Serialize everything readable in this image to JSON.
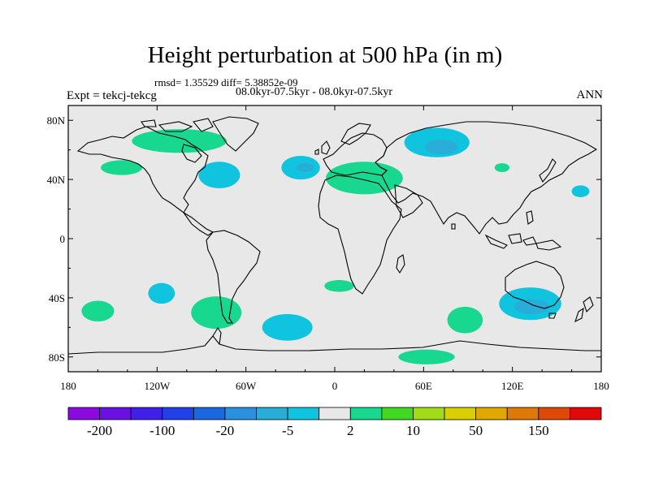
{
  "chart_data": {
    "type": "heatmap",
    "title": "Height perturbation at 500 hPa (in m)",
    "stats": "rmsd= 1.35529 diff= 5.38852e-09",
    "subtitle": "08.0kyr-07.5kyr - 08.0kyr-07.5kyr",
    "expt": "Expt = tekcj-tekcg",
    "season": "ANN",
    "lon_range": [
      -180,
      180
    ],
    "lat_range": [
      -90,
      90
    ],
    "x_ticks": [
      {
        "value": -180,
        "label": "180"
      },
      {
        "value": -120,
        "label": "120W"
      },
      {
        "value": -60,
        "label": "60W"
      },
      {
        "value": 0,
        "label": "0"
      },
      {
        "value": 60,
        "label": "60E"
      },
      {
        "value": 120,
        "label": "120E"
      },
      {
        "value": 180,
        "label": "180"
      }
    ],
    "y_ticks": [
      {
        "value": 80,
        "label": "80N"
      },
      {
        "value": 40,
        "label": "40N"
      },
      {
        "value": 0,
        "label": "0"
      },
      {
        "value": -40,
        "label": "40S"
      },
      {
        "value": -80,
        "label": "80S"
      }
    ],
    "colorbar": {
      "colors": [
        "#8a0ae0",
        "#6a10e4",
        "#4020e8",
        "#2040e8",
        "#1a68e0",
        "#2a90e0",
        "#28acd8",
        "#10c4e0",
        "#e8e8e8",
        "#18d890",
        "#40d820",
        "#a0dc18",
        "#d8d000",
        "#e0a800",
        "#e07808",
        "#e04808",
        "#e00808"
      ],
      "labels": [
        "-200",
        "-100",
        "-20",
        "-5",
        "2",
        "10",
        "50",
        "150"
      ]
    },
    "anomaly_regions": [
      {
        "lon": -105,
        "lat": 66,
        "rx": 32,
        "ry": 8,
        "level": "positive-2-10",
        "color": "#18d890"
      },
      {
        "lon": -144,
        "lat": 48,
        "rx": 14,
        "ry": 5,
        "level": "positive-2-10",
        "color": "#18d890"
      },
      {
        "lon": -78,
        "lat": 43,
        "rx": 14,
        "ry": 9,
        "level": "negative-5-2",
        "color": "#10c4e0"
      },
      {
        "lon": -23,
        "lat": 48,
        "rx": 13,
        "ry": 8,
        "level": "negative-5-2",
        "color": "#10c4e0"
      },
      {
        "lon": -20,
        "lat": 48,
        "rx": 6,
        "ry": 3,
        "level": "negative-20-5",
        "color": "#28acd8"
      },
      {
        "lon": 20,
        "lat": 41,
        "rx": 26,
        "ry": 11,
        "level": "positive-2-10",
        "color": "#18d890"
      },
      {
        "lon": 69,
        "lat": 65,
        "rx": 22,
        "ry": 10,
        "level": "negative-5-2",
        "color": "#10c4e0"
      },
      {
        "lon": 72,
        "lat": 62,
        "rx": 11,
        "ry": 5,
        "level": "negative-20-5",
        "color": "#28acd8"
      },
      {
        "lon": 113,
        "lat": 48,
        "rx": 5,
        "ry": 3,
        "level": "positive-2-10",
        "color": "#18d890"
      },
      {
        "lon": 166,
        "lat": 32,
        "rx": 6,
        "ry": 4,
        "level": "negative-5-2",
        "color": "#10c4e0"
      },
      {
        "lon": -160,
        "lat": -49,
        "rx": 11,
        "ry": 7,
        "level": "positive-2-10",
        "color": "#18d890"
      },
      {
        "lon": -117,
        "lat": -37,
        "rx": 9,
        "ry": 7,
        "level": "negative-5-2",
        "color": "#10c4e0"
      },
      {
        "lon": -80,
        "lat": -50,
        "rx": 17,
        "ry": 11,
        "level": "positive-2-10",
        "color": "#18d890"
      },
      {
        "lon": -32,
        "lat": -60,
        "rx": 17,
        "ry": 9,
        "level": "negative-5-2",
        "color": "#10c4e0"
      },
      {
        "lon": 3,
        "lat": -32,
        "rx": 10,
        "ry": 4,
        "level": "positive-2-10",
        "color": "#18d890"
      },
      {
        "lon": 88,
        "lat": -55,
        "rx": 12,
        "ry": 9,
        "level": "positive-2-10",
        "color": "#18d890"
      },
      {
        "lon": 132,
        "lat": -44,
        "rx": 21,
        "ry": 11,
        "level": "negative-5-2",
        "color": "#10c4e0"
      },
      {
        "lon": 133,
        "lat": -46,
        "rx": 12,
        "ry": 5,
        "level": "negative-20-5",
        "color": "#28acd8"
      },
      {
        "lon": 62,
        "lat": -80,
        "rx": 19,
        "ry": 5,
        "level": "positive-2-10",
        "color": "#18d890"
      }
    ],
    "background_color": "#e8e8e8"
  }
}
